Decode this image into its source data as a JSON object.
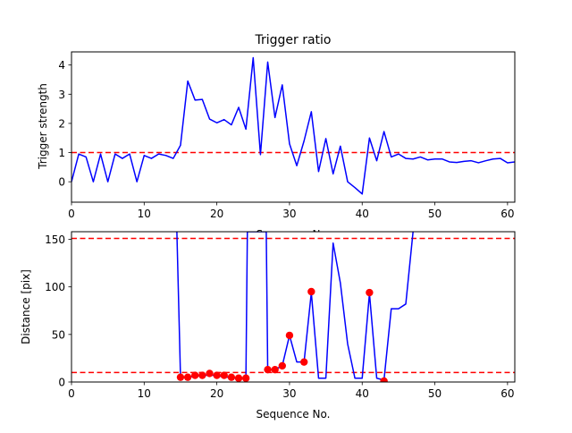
{
  "chart_data": [
    {
      "type": "line",
      "title": "Trigger ratio",
      "xlabel": "Sequence No.",
      "ylabel": "Trigger strength",
      "xlim": [
        0,
        61
      ],
      "ylim": [
        -0.7,
        4.45
      ],
      "xticks": [
        0,
        10,
        20,
        30,
        40,
        50,
        60
      ],
      "yticks": [
        0,
        1,
        2,
        3,
        4
      ],
      "reference_lines": [
        {
          "y": 1,
          "color": "#ff0000",
          "style": "dashed"
        }
      ],
      "series": [
        {
          "color": "#0000ff",
          "x": [
            0,
            1,
            2,
            3,
            4,
            5,
            6,
            7,
            8,
            9,
            10,
            11,
            12,
            13,
            14,
            15,
            16,
            17,
            18,
            19,
            20,
            21,
            22,
            23,
            24,
            25,
            26,
            27,
            28,
            29,
            30,
            31,
            32,
            33,
            34,
            35,
            36,
            37,
            38,
            39,
            40,
            41,
            42,
            43,
            44,
            45,
            46,
            47,
            48,
            49,
            50,
            51,
            52,
            53,
            54,
            55,
            56,
            57,
            58,
            59,
            60,
            61
          ],
          "values": [
            0,
            0.95,
            0.85,
            0,
            0.95,
            0,
            0.95,
            0.8,
            0.95,
            0,
            0.9,
            0.8,
            0.95,
            0.9,
            0.8,
            1.25,
            3.45,
            2.8,
            2.82,
            2.15,
            2.02,
            2.13,
            1.95,
            2.55,
            1.8,
            4.25,
            0.93,
            4.1,
            2.2,
            3.32,
            1.3,
            0.55,
            1.4,
            2.4,
            0.35,
            1.48,
            0.27,
            1.22,
            0,
            -0.2,
            -0.42,
            1.5,
            0.72,
            1.72,
            0.85,
            0.95,
            0.8,
            0.78,
            0.85,
            0.75,
            0.78,
            0.78,
            0.68,
            0.66,
            0.7,
            0.72,
            0.65,
            0.72,
            0.78,
            0.8,
            0.65,
            0.68
          ]
        }
      ]
    },
    {
      "type": "line",
      "title": "",
      "xlabel": "Sequence No.",
      "ylabel": "Distance [pix]",
      "xlim": [
        0,
        61
      ],
      "ylim": [
        0,
        158
      ],
      "xticks": [
        0,
        10,
        20,
        30,
        40,
        50,
        60
      ],
      "yticks": [
        0,
        50,
        100,
        150
      ],
      "reference_lines": [
        {
          "y": 151,
          "color": "#ff0000",
          "style": "dashed"
        },
        {
          "y": 10,
          "color": "#ff0000",
          "style": "dashed"
        }
      ],
      "series": [
        {
          "color": "#0000ff",
          "style": "line",
          "x": [
            14.5,
            15,
            16,
            17,
            18,
            19,
            20,
            21,
            22,
            23,
            24,
            24.2,
            26.8,
            27,
            28,
            29,
            30,
            31,
            32,
            33,
            34,
            35,
            36,
            37,
            38,
            39,
            40,
            41,
            42,
            43,
            44,
            45,
            46,
            47
          ],
          "values": [
            158,
            5,
            4,
            7,
            6,
            8,
            6,
            6,
            4,
            4,
            4,
            158,
            158,
            13,
            13,
            17,
            49,
            21,
            21,
            94,
            4,
            4,
            146,
            104,
            40,
            4,
            4,
            93,
            4,
            2,
            77,
            77,
            82,
            158
          ]
        },
        {
          "color": "#ff0000",
          "style": "markers",
          "x": [
            15,
            16,
            17,
            18,
            19,
            20,
            21,
            22,
            23,
            24,
            27,
            28,
            29,
            30,
            32,
            33,
            41,
            43
          ],
          "values": [
            5,
            5,
            7,
            7,
            9,
            7,
            7,
            5,
            4,
            4,
            13,
            13,
            17,
            49,
            21,
            95,
            94,
            1
          ]
        }
      ]
    }
  ]
}
